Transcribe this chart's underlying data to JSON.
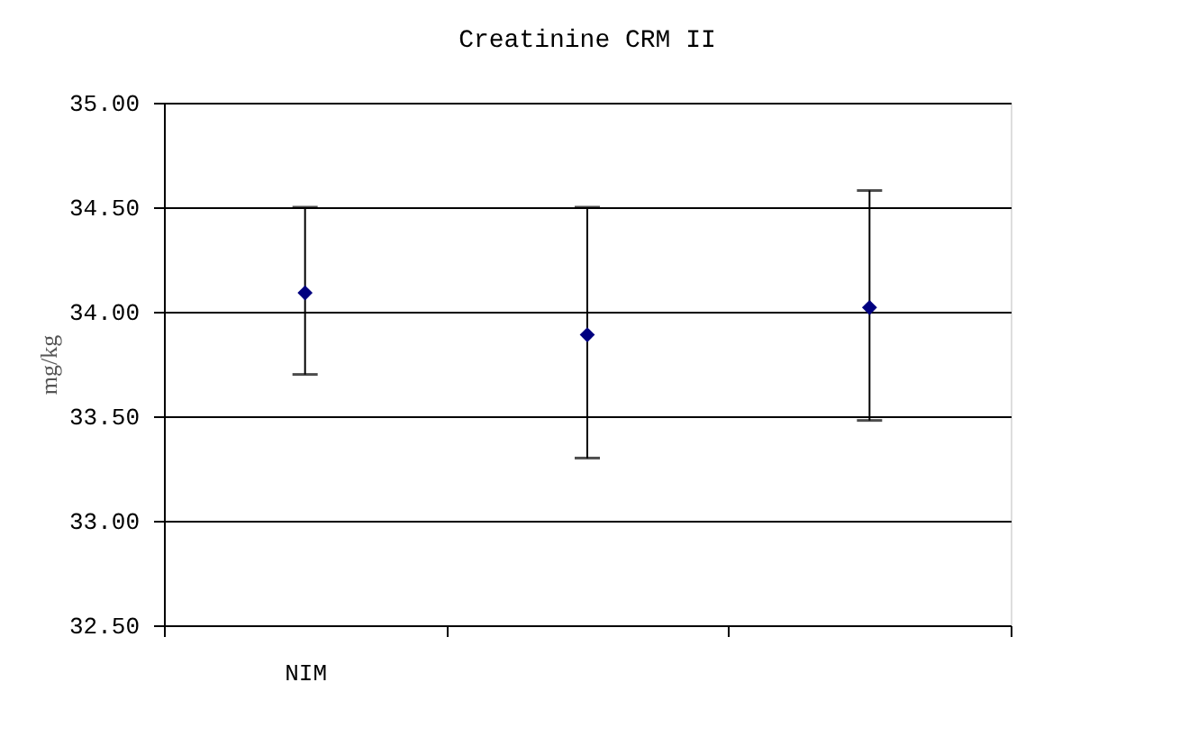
{
  "chart_data": {
    "type": "scatter",
    "title": "Creatinine CRM II",
    "ylabel": "mg/kg",
    "categories": [
      "NIM",
      null,
      null
    ],
    "values": [
      34.09,
      33.89,
      34.02
    ],
    "errors": [
      [
        33.7,
        34.5
      ],
      [
        33.3,
        34.5
      ],
      [
        33.48,
        34.58
      ]
    ],
    "color": "#000080",
    "marker": "diamond",
    "ylim": [
      32.5,
      35.0
    ],
    "yticks": [
      {
        "value": 32.5,
        "label": "32.50"
      },
      {
        "value": 33.0,
        "label": "33.00"
      },
      {
        "value": 33.5,
        "label": "33.50"
      },
      {
        "value": 34.0,
        "label": "34.00"
      },
      {
        "value": 34.5,
        "label": "34.50"
      },
      {
        "value": 35.0,
        "label": "35.00"
      }
    ],
    "grid": "y"
  }
}
